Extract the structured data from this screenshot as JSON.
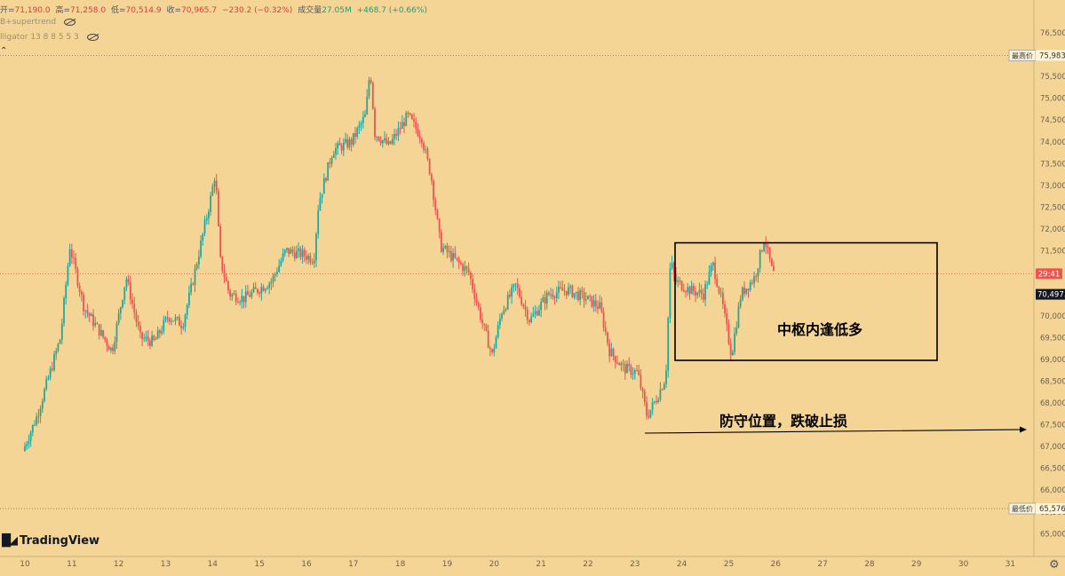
{
  "legend": {
    "open_label": "开=",
    "open": "71,190.0",
    "high_label": "高=",
    "high": "71,258.0",
    "low_label": "低=",
    "low": "70,514.9",
    "close_label": "收=",
    "close": "70,965.7",
    "change": "−230.2 (−0.32%)",
    "volume_label": "成交量",
    "volume": "27.05M",
    "volume_change": "+468.7 (+0.66%)",
    "indicator1": "B+supertrend",
    "indicator2": "lligator 13 8 8 5 5 3"
  },
  "branding": {
    "logo": "TradingView"
  },
  "colors": {
    "background": "#f5d596",
    "up": "#26a69a",
    "down": "#ef5350",
    "box": "#000000",
    "price_tag": "#ef5350",
    "last_tag": "#131722"
  },
  "chart_data": {
    "type": "candlestick",
    "x_labels": [
      "10",
      "11",
      "12",
      "13",
      "14",
      "15",
      "16",
      "17",
      "18",
      "19",
      "20",
      "21",
      "22",
      "23",
      "24",
      "25",
      "26",
      "27",
      "28",
      "29",
      "30",
      "31"
    ],
    "y_ticks": [
      "76,500.0",
      "76,000.0",
      "75,500.0",
      "75,000.0",
      "74,500.0",
      "74,000.0",
      "73,500.0",
      "73,000.0",
      "72,500.0",
      "72,000.0",
      "71,500.0",
      "70,000.0",
      "69,500.0",
      "69,000.0",
      "68,500.0",
      "68,000.0",
      "67,500.0",
      "67,000.0",
      "66,500.0",
      "66,000.0",
      "65,500.0",
      "65,000.0"
    ],
    "ylim": [
      64600,
      77000
    ],
    "high_marker": {
      "label": "最高价",
      "value": "75,983."
    },
    "low_marker": {
      "label": "最低价",
      "value": "65,576."
    },
    "countdown": "29:41",
    "last_price": "70,497.",
    "price_path": [
      [
        0,
        66900
      ],
      [
        0.3,
        67700
      ],
      [
        0.8,
        69500
      ],
      [
        1.0,
        71600
      ],
      [
        1.3,
        70200
      ],
      [
        1.6,
        69700
      ],
      [
        1.9,
        69200
      ],
      [
        2.2,
        70900
      ],
      [
        2.5,
        69500
      ],
      [
        2.8,
        69400
      ],
      [
        3.1,
        70000
      ],
      [
        3.4,
        69800
      ],
      [
        3.6,
        70700
      ],
      [
        4.0,
        72700
      ],
      [
        4.1,
        73300
      ],
      [
        4.2,
        71300
      ],
      [
        4.4,
        70500
      ],
      [
        4.7,
        70400
      ],
      [
        5.0,
        70600
      ],
      [
        5.3,
        70800
      ],
      [
        5.6,
        71500
      ],
      [
        6.0,
        71400
      ],
      [
        6.2,
        71300
      ],
      [
        6.3,
        72600
      ],
      [
        6.6,
        73800
      ],
      [
        7.0,
        74000
      ],
      [
        7.3,
        74600
      ],
      [
        7.4,
        75700
      ],
      [
        7.5,
        74200
      ],
      [
        7.8,
        73900
      ],
      [
        8.2,
        74600
      ],
      [
        8.5,
        74100
      ],
      [
        8.7,
        73200
      ],
      [
        8.9,
        71600
      ],
      [
        9.2,
        71300
      ],
      [
        9.5,
        71000
      ],
      [
        9.8,
        69800
      ],
      [
        10.0,
        69100
      ],
      [
        10.2,
        70100
      ],
      [
        10.5,
        70700
      ],
      [
        10.8,
        69900
      ],
      [
        11.2,
        70500
      ],
      [
        11.6,
        70600
      ],
      [
        12.0,
        70400
      ],
      [
        12.3,
        70200
      ],
      [
        12.5,
        69200
      ],
      [
        12.8,
        68800
      ],
      [
        13.1,
        68700
      ],
      [
        13.3,
        67700
      ],
      [
        13.5,
        68100
      ],
      [
        13.7,
        68600
      ],
      [
        13.8,
        71300
      ],
      [
        13.9,
        70800
      ],
      [
        14.2,
        70600
      ],
      [
        14.5,
        70500
      ],
      [
        14.7,
        71200
      ],
      [
        14.9,
        70300
      ],
      [
        15.1,
        69100
      ],
      [
        15.3,
        70500
      ],
      [
        15.6,
        70900
      ],
      [
        15.8,
        71800
      ],
      [
        15.98,
        70970
      ]
    ]
  },
  "annotations": {
    "box_label": "中枢内逢低多",
    "defense_label": "防守位置，跌破止损"
  }
}
